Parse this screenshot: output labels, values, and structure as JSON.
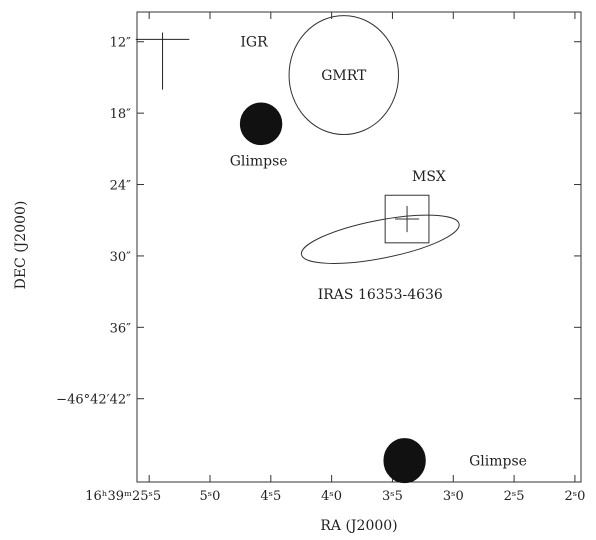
{
  "chart_data": {
    "type": "scatter",
    "xlabel": "RA (J2000)",
    "ylabel": "DEC (J2000)",
    "xlim": [
      5.6,
      1.95
    ],
    "ylim": [
      49,
      9.5
    ],
    "x_ticks": [
      {
        "value": 5.5,
        "label": "16ʰ39ᵐ25ˢ5"
      },
      {
        "value": 5.0,
        "label": "5ˢ0"
      },
      {
        "value": 4.5,
        "label": "4ˢ5"
      },
      {
        "value": 4.0,
        "label": "4ˢ0"
      },
      {
        "value": 3.5,
        "label": "3ˢ5"
      },
      {
        "value": 3.0,
        "label": "3ˢ0"
      },
      {
        "value": 2.5,
        "label": "2ˢ5"
      },
      {
        "value": 2.0,
        "label": "2ˢ0"
      }
    ],
    "y_ticks": [
      {
        "value": 12,
        "label": "12″"
      },
      {
        "value": 18,
        "label": "18″"
      },
      {
        "value": 24,
        "label": "24″"
      },
      {
        "value": 30,
        "label": "30″"
      },
      {
        "value": 36,
        "label": "36″"
      },
      {
        "value": 42,
        "label": "−46°42′42″"
      }
    ],
    "sources": [
      {
        "name": "IGR",
        "shape": "cross",
        "ra": 5.39,
        "dec": 11.8,
        "arm_ra": 0.22,
        "arm_dec": 4.8,
        "label_ra": 4.75,
        "label_dec": 12.0
      },
      {
        "name": "GMRT",
        "shape": "circle",
        "ra": 3.9,
        "dec": 14.8,
        "radius_ra": 0.45,
        "radius_dec": 5.0,
        "label_ra": 3.9,
        "label_dec": 14.8
      },
      {
        "name": "Glimpse",
        "shape": "disk",
        "ra": 4.58,
        "dec": 18.9,
        "radius_ra": 0.17,
        "radius_dec": 1.75,
        "label_ra": 4.6,
        "label_dec": 22.0
      },
      {
        "name": "MSX",
        "shape": "box-cross",
        "ra": 3.38,
        "dec": 26.9,
        "half_ra": 0.18,
        "half_dec": 2.0,
        "label_ra": 3.2,
        "label_dec": 23.3
      },
      {
        "name": "IRAS 16353-4636",
        "shape": "ellipse",
        "ra": 3.6,
        "dec": 28.6,
        "radius_ra": 0.66,
        "radius_dec": 1.6,
        "angle": -11,
        "label_ra": 3.6,
        "label_dec": 33.2
      },
      {
        "name": "Glimpse",
        "shape": "disk",
        "ra": 3.4,
        "dec": 47.2,
        "radius_ra": 0.17,
        "radius_dec": 1.85,
        "label_ra": 2.87,
        "label_dec": 47.2
      }
    ]
  }
}
